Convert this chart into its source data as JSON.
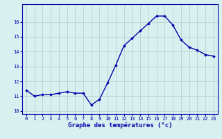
{
  "hours": [
    0,
    1,
    2,
    3,
    4,
    5,
    6,
    7,
    8,
    9,
    10,
    11,
    12,
    13,
    14,
    15,
    16,
    17,
    18,
    19,
    20,
    21,
    22,
    23
  ],
  "temperatures": [
    11.4,
    11.0,
    11.1,
    11.1,
    11.2,
    11.3,
    11.2,
    11.2,
    10.4,
    10.8,
    11.9,
    13.1,
    14.4,
    14.9,
    15.4,
    15.9,
    16.4,
    16.4,
    15.8,
    14.8,
    14.3,
    14.1,
    13.8,
    13.7
  ],
  "line_color": "#0000aa",
  "marker": "D",
  "marker_size": 1.8,
  "bg_color": "#d8f0f0",
  "grid_color": "#b8d0d0",
  "xlabel": "Graphe des températures (°c)",
  "xlabel_color": "#0000aa",
  "ylim": [
    9.8,
    17.2
  ],
  "xlim": [
    -0.5,
    23.5
  ],
  "yticks": [
    10,
    11,
    12,
    13,
    14,
    15,
    16
  ],
  "xtick_labels": [
    "0",
    "1",
    "2",
    "3",
    "4",
    "5",
    "6",
    "7",
    "8",
    "9",
    "10",
    "11",
    "12",
    "13",
    "14",
    "15",
    "16",
    "17",
    "18",
    "19",
    "20",
    "21",
    "22",
    "23"
  ],
  "tick_color": "#0000aa",
  "tick_fontsize": 5.0,
  "xlabel_fontsize": 6.5,
  "axis_color": "#0000aa",
  "linewidth": 1.0
}
